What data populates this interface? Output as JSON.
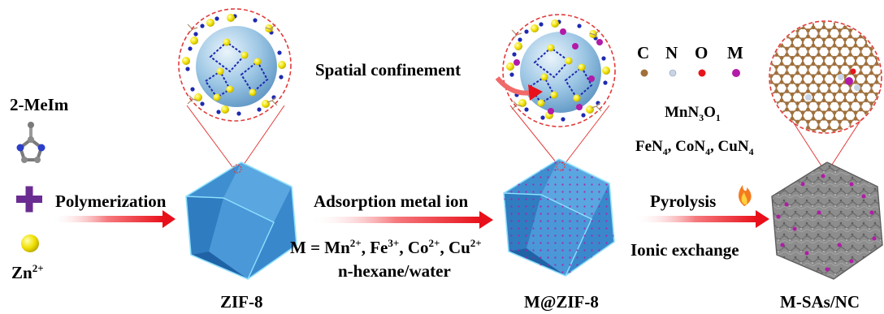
{
  "reactants": {
    "ligand": "2-MeIm",
    "metal_ion_base": "Zn",
    "metal_ion_charge": "2+"
  },
  "steps": {
    "step1": "Polymerization",
    "step2": "Adsorption metal ion",
    "step2_metals": [
      {
        "el": "Mn",
        "ch": "2+"
      },
      {
        "el": "Fe",
        "ch": "3+"
      },
      {
        "el": "Co",
        "ch": "2+"
      },
      {
        "el": "Cu",
        "ch": "2+"
      }
    ],
    "step2_solvent": "n-hexane/water",
    "step3": "Pyrolysis",
    "step3_sub": "Ionic exchange"
  },
  "products": {
    "p1": "ZIF-8",
    "p2": "M@ZIF-8",
    "p3": "M-SAs/NC"
  },
  "annotation": "Spatial confinement",
  "legend": [
    {
      "label": "C",
      "color": "#a0703a"
    },
    {
      "label": "N",
      "color": "#c8d4e6"
    },
    {
      "label": "O",
      "color": "#e8141c"
    },
    {
      "label": "M",
      "color": "#b21aa8"
    }
  ],
  "coordination": {
    "mn": [
      "Mn",
      "N",
      "3",
      "O",
      "1"
    ],
    "others": [
      {
        "el": "Fe",
        "n": "N",
        "k": "4"
      },
      {
        "el": "Co",
        "n": "N",
        "k": "4"
      },
      {
        "el": "Cu",
        "n": "N",
        "k": "4"
      }
    ]
  },
  "colors": {
    "arrow": "#e8101a",
    "plus": "#6a2c91",
    "crystal": "#3f8fd0",
    "zn": "#f0e000",
    "metal_dot": "#b21aa8"
  }
}
